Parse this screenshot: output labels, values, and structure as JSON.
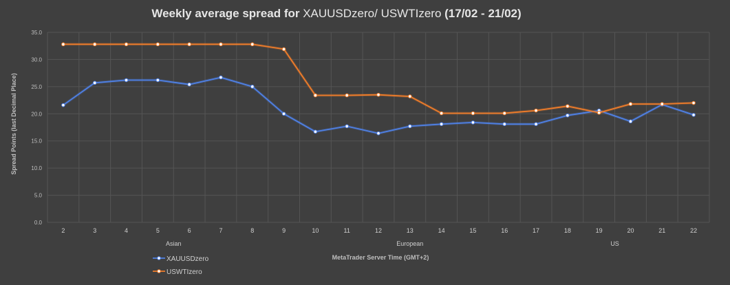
{
  "title": {
    "part1": "Weekly average spread for ",
    "part2": "XAUUSDzero/ USWTIzero",
    "part3": " (17/02 - 21/02)"
  },
  "colors": {
    "background": "#3f3f3f",
    "grid": "#555555",
    "xauusd": "#4f81e6",
    "uswti": "#f07d2a"
  },
  "chart_data": {
    "type": "line",
    "x": [
      2,
      3,
      4,
      5,
      6,
      7,
      8,
      9,
      10,
      11,
      12,
      13,
      14,
      15,
      16,
      17,
      18,
      19,
      20,
      21,
      22
    ],
    "series": [
      {
        "name": "XAUUSDzero",
        "values": [
          21.6,
          25.7,
          26.2,
          26.2,
          25.4,
          26.7,
          25.0,
          20.0,
          16.7,
          17.7,
          16.4,
          17.7,
          18.1,
          18.4,
          18.1,
          18.1,
          19.7,
          20.6,
          18.6,
          21.7,
          19.8
        ]
      },
      {
        "name": "USWTIzero",
        "values": [
          32.8,
          32.8,
          32.8,
          32.8,
          32.8,
          32.8,
          32.8,
          31.9,
          23.4,
          23.4,
          23.5,
          23.2,
          20.1,
          20.1,
          20.1,
          20.6,
          21.4,
          20.2,
          21.8,
          21.8,
          22.0
        ]
      }
    ],
    "ylim": [
      0,
      35
    ],
    "yticks": [
      "0.0",
      "5.0",
      "10.0",
      "15.0",
      "20.0",
      "25.0",
      "30.0",
      "35.0"
    ],
    "ylabel": "Spread Points  (last Decimal Place)",
    "xlabel": "MetaTrader Server Time (GMT+2)",
    "sessions": [
      {
        "label": "Asian",
        "at": 5.5
      },
      {
        "label": "European",
        "at": 13
      },
      {
        "label": "US",
        "at": 19.5
      }
    ],
    "grid": true,
    "legend_placement": "bottom-left"
  }
}
